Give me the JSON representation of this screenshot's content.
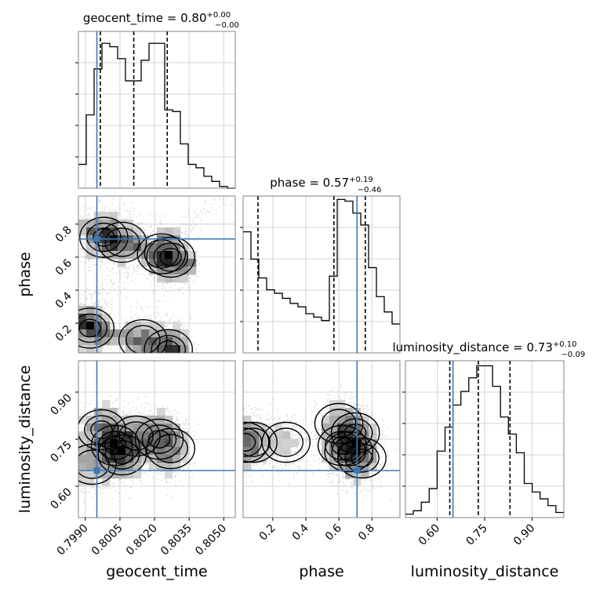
{
  "chart_data": {
    "type": "corner",
    "parameters": [
      "geocent_time",
      "phase",
      "luminosity_distance"
    ],
    "truths": {
      "geocent_time": 0.7995,
      "phase": 0.71,
      "luminosity_distance": 0.65
    },
    "colors": {
      "truth": "#3d7ab5",
      "hist": "#000000",
      "grid": "#c8c8c8",
      "scatter": "#888888"
    },
    "titles": {
      "geocent_time": {
        "label": "geocent_time = 0.80",
        "plus": "+0.00",
        "minus": "−0.00"
      },
      "phase": {
        "label": "phase = 0.57",
        "plus": "+0.19",
        "minus": "−0.46"
      },
      "luminosity_distance": {
        "label": "luminosity_distance = 0.73",
        "plus": "+0.10",
        "minus": "−0.09"
      }
    },
    "axes": {
      "geocent_time": {
        "range": [
          0.7987,
          0.8055
        ],
        "ticks": [
          "0.7990",
          "0.8005",
          "0.8020",
          "0.8035",
          "0.8050"
        ],
        "tick_values": [
          0.799,
          0.8005,
          0.802,
          0.8035,
          0.805
        ]
      },
      "phase": {
        "range": [
          0.02,
          0.97
        ],
        "ticks": [
          "0.2",
          "0.4",
          "0.6",
          "0.8"
        ],
        "tick_values": [
          0.2,
          0.4,
          0.6,
          0.8
        ]
      },
      "luminosity_distance": {
        "range": [
          0.5,
          1.0
        ],
        "ticks": [
          "0.60",
          "0.75",
          "0.90"
        ],
        "tick_values": [
          0.6,
          0.75,
          0.9
        ]
      }
    },
    "histograms": {
      "geocent_time": {
        "bin_edges": [
          0.7987,
          0.79904,
          0.79938,
          0.79972,
          0.80006,
          0.8004,
          0.80074,
          0.80108,
          0.80142,
          0.80176,
          0.8021,
          0.80244,
          0.80278,
          0.80312,
          0.80346,
          0.8038,
          0.80414,
          0.80448,
          0.80482,
          0.80516,
          0.8055
        ],
        "counts": [
          0.14,
          0.43,
          0.7,
          0.85,
          0.83,
          0.76,
          0.63,
          0.63,
          0.75,
          0.85,
          0.85,
          0.46,
          0.45,
          0.26,
          0.14,
          0.12,
          0.07,
          0.04,
          0.01,
          0.0
        ],
        "quantiles": [
          0.79965,
          0.8011,
          0.80255
        ]
      },
      "phase": {
        "bin_edges": [
          0.02,
          0.0675,
          0.115,
          0.1625,
          0.21,
          0.2575,
          0.305,
          0.3525,
          0.4,
          0.4475,
          0.495,
          0.5425,
          0.59,
          0.6375,
          0.685,
          0.7325,
          0.78,
          0.8275,
          0.875,
          0.9225,
          0.97
        ],
        "counts": [
          0.71,
          0.55,
          0.44,
          0.37,
          0.35,
          0.32,
          0.29,
          0.27,
          0.23,
          0.21,
          0.19,
          0.45,
          0.9,
          0.89,
          0.82,
          0.75,
          0.5,
          0.33,
          0.24,
          0.17
        ],
        "quantiles": [
          0.11,
          0.57,
          0.76
        ]
      },
      "luminosity_distance": {
        "bin_edges": [
          0.5,
          0.525,
          0.55,
          0.575,
          0.6,
          0.625,
          0.65,
          0.675,
          0.7,
          0.725,
          0.75,
          0.775,
          0.8,
          0.825,
          0.85,
          0.875,
          0.9,
          0.925,
          0.95,
          0.975,
          1.0
        ],
        "counts": [
          0.02,
          0.04,
          0.09,
          0.17,
          0.39,
          0.53,
          0.66,
          0.74,
          0.82,
          0.89,
          0.89,
          0.77,
          0.59,
          0.49,
          0.38,
          0.2,
          0.15,
          0.11,
          0.07,
          0.03
        ],
        "quantiles": [
          0.64,
          0.73,
          0.83
        ]
      }
    },
    "density_2d": {
      "phase_vs_geocent_time": {
        "ridges": [
          {
            "points": [
              [
                0.7989,
                0.79
              ],
              [
                0.7995,
                0.73
              ],
              [
                0.8003,
                0.7
              ],
              [
                0.8012,
                0.67
              ],
              [
                0.8022,
                0.62
              ],
              [
                0.803,
                0.57
              ],
              [
                0.8037,
                0.55
              ]
            ],
            "width": 0.07
          },
          {
            "points": [
              [
                0.7988,
                0.22
              ],
              [
                0.7993,
                0.16
              ],
              [
                0.8002,
                0.12
              ],
              [
                0.8012,
                0.1
              ],
              [
                0.8024,
                0.05
              ],
              [
                0.8033,
                0.04
              ]
            ],
            "width": 0.07
          }
        ],
        "blobs": [
          {
            "x": 0.7998,
            "y": 0.72,
            "level": 0.9
          },
          {
            "x": 0.8006,
            "y": 0.69,
            "level": 0.5
          },
          {
            "x": 0.8027,
            "y": 0.6,
            "level": 0.8
          },
          {
            "x": 0.8023,
            "y": 0.62,
            "level": 0.4
          },
          {
            "x": 0.7992,
            "y": 0.17,
            "level": 0.9
          },
          {
            "x": 0.8015,
            "y": 0.1,
            "level": 0.5
          },
          {
            "x": 0.8026,
            "y": 0.04,
            "level": 1.0
          }
        ]
      },
      "luminosity_distance_vs_geocent_time": {
        "blobs": [
          {
            "x": 0.7997,
            "y": 0.78,
            "level": 0.6
          },
          {
            "x": 0.8003,
            "y": 0.73,
            "level": 0.9
          },
          {
            "x": 0.8006,
            "y": 0.7,
            "level": 0.8
          },
          {
            "x": 0.8012,
            "y": 0.76,
            "level": 0.35
          },
          {
            "x": 0.8022,
            "y": 0.75,
            "level": 0.85
          },
          {
            "x": 0.8027,
            "y": 0.72,
            "level": 0.5
          },
          {
            "x": 0.7993,
            "y": 0.67,
            "level": 0.4
          }
        ]
      },
      "luminosity_distance_vs_phase": {
        "blobs": [
          {
            "x": 0.03,
            "y": 0.74,
            "level": 0.8
          },
          {
            "x": 0.08,
            "y": 0.74,
            "level": 0.5
          },
          {
            "x": 0.62,
            "y": 0.73,
            "level": 0.9
          },
          {
            "x": 0.66,
            "y": 0.71,
            "level": 1.0
          },
          {
            "x": 0.7,
            "y": 0.77,
            "level": 0.7
          },
          {
            "x": 0.74,
            "y": 0.69,
            "level": 0.6
          },
          {
            "x": 0.6,
            "y": 0.8,
            "level": 0.4
          },
          {
            "x": 0.28,
            "y": 0.74,
            "level": 0.2
          }
        ]
      }
    }
  }
}
